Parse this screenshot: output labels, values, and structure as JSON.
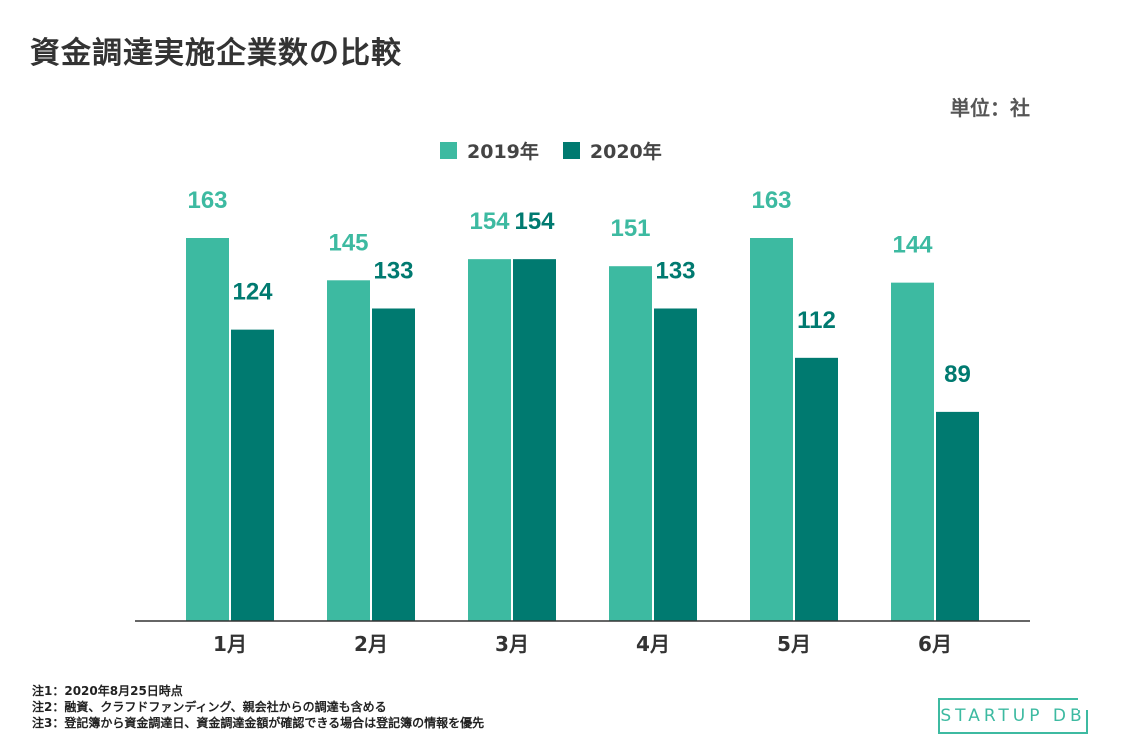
{
  "title": "資金調達実施企業数の比較",
  "unit": "単位：社",
  "colors": {
    "y2019": "#3dbaa1",
    "y2020": "#007a70"
  },
  "chart_data": {
    "type": "bar",
    "categories": [
      "1月",
      "2月",
      "3月",
      "4月",
      "5月",
      "6月"
    ],
    "series": [
      {
        "name": "2019年",
        "values": [
          163,
          145,
          154,
          151,
          163,
          144
        ]
      },
      {
        "name": "2020年",
        "values": [
          124,
          133,
          154,
          133,
          112,
          89
        ]
      }
    ],
    "ylim": [
      0,
      200
    ],
    "legend": "top-center",
    "grid": false
  },
  "notes": [
    "注1：2020年8月25日時点",
    "注2：融資、クラフドファンディング、親会社からの調達も含める",
    "注3：登記簿から資金調達日、資金調達金額が確認できる場合は登記簿の情報を優先"
  ],
  "logo": "STARTUP DB"
}
